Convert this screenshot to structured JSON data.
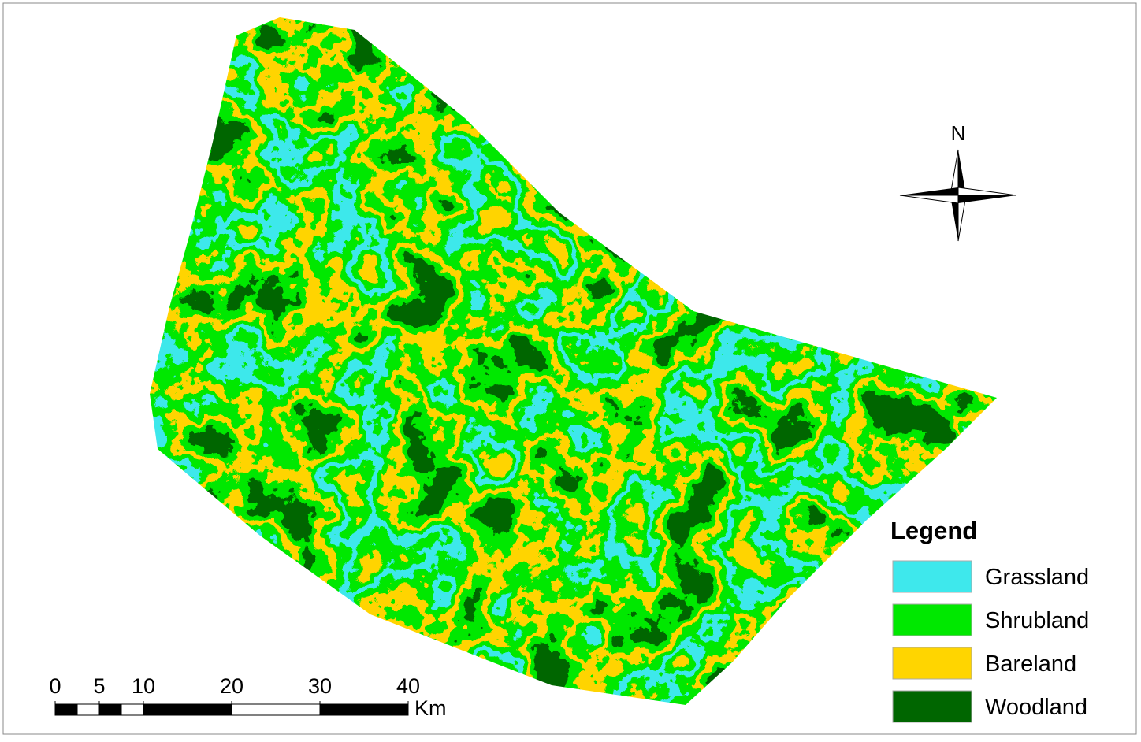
{
  "map": {
    "north_label": "N",
    "legend": {
      "title": "Legend",
      "items": [
        {
          "label": "Grassland",
          "color": "#3ee8ec"
        },
        {
          "label": "Shrubland",
          "color": "#00e800"
        },
        {
          "label": "Bareland",
          "color": "#ffd500"
        },
        {
          "label": "Woodland",
          "color": "#006600"
        }
      ]
    },
    "scale_bar": {
      "ticks": [
        0,
        5,
        10,
        20,
        30,
        40
      ],
      "unit": "Km"
    }
  }
}
